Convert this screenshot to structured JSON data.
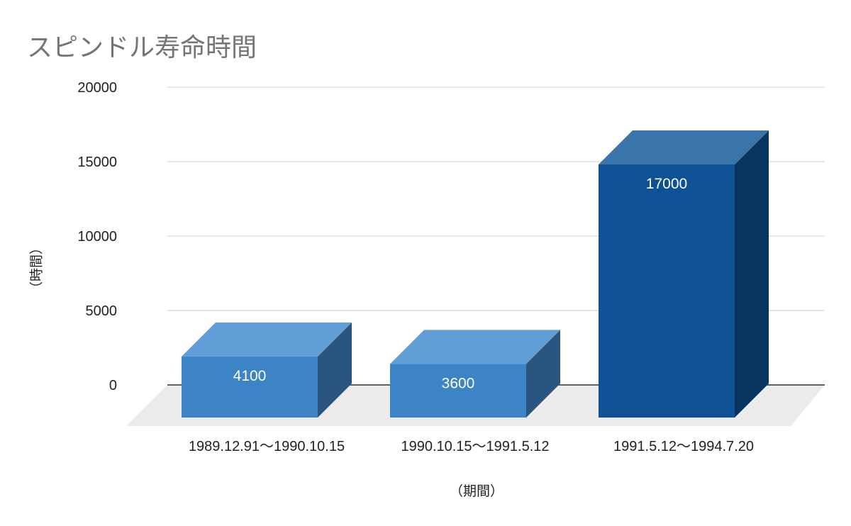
{
  "chart_data": {
    "type": "bar",
    "title": "スピンドル寿命時間",
    "xlabel": "（期間）",
    "ylabel": "（時間）",
    "categories": [
      "1989.12.91～1990.10.15",
      "1990.10.15～1991.5.12",
      "1991.5.12～1994.7.20"
    ],
    "values": [
      4100,
      3600,
      17000
    ],
    "data_labels": [
      "4100",
      "3600",
      "17000"
    ],
    "ylim": [
      0,
      20000
    ],
    "yticks": [
      0,
      5000,
      10000,
      15000,
      20000
    ],
    "ytick_labels": [
      "0",
      "5000",
      "10000",
      "15000",
      "20000"
    ],
    "grid": true,
    "legend": "none",
    "style": "3d",
    "colors": {
      "bar_front": [
        "#3d84c6",
        "#3d84c6",
        "#0e5295"
      ],
      "bar_top": [
        "#629ed6",
        "#629ed6",
        "#3b76aa"
      ],
      "bar_side": [
        "#29557f",
        "#29557f",
        "#09345f"
      ],
      "floor": "#ebebeb",
      "grid": "#cccccc",
      "axis": "#333333"
    }
  }
}
